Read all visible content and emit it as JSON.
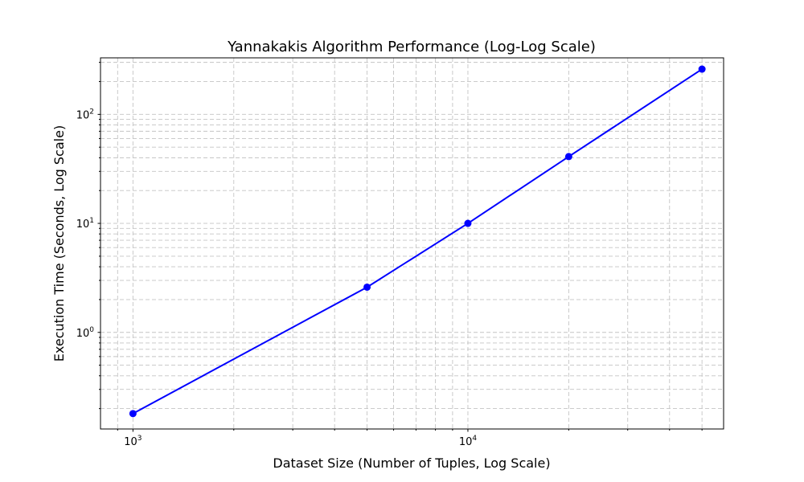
{
  "chart_data": {
    "type": "line",
    "title": "Yannakakis Algorithm Performance (Log-Log Scale)",
    "xlabel": "Dataset Size (Number of Tuples, Log Scale)",
    "ylabel": "Execution Time (Seconds, Log Scale)",
    "xscale": "log",
    "yscale": "log",
    "xlim": [
      800,
      58000
    ],
    "ylim": [
      0.13,
      330
    ],
    "grid": true,
    "x_ticks": [
      {
        "value": 1000,
        "base": "10",
        "exp": "3"
      },
      {
        "value": 10000,
        "base": "10",
        "exp": "4"
      }
    ],
    "y_ticks": [
      {
        "value": 1,
        "base": "10",
        "exp": "0"
      },
      {
        "value": 10,
        "base": "10",
        "exp": "1"
      },
      {
        "value": 100,
        "base": "10",
        "exp": "2"
      }
    ],
    "series": [
      {
        "color": "#0000ff",
        "marker": "circle",
        "x": [
          1000,
          5000,
          10000,
          20000,
          50000
        ],
        "y": [
          0.18,
          2.6,
          10,
          41,
          260
        ]
      }
    ]
  }
}
